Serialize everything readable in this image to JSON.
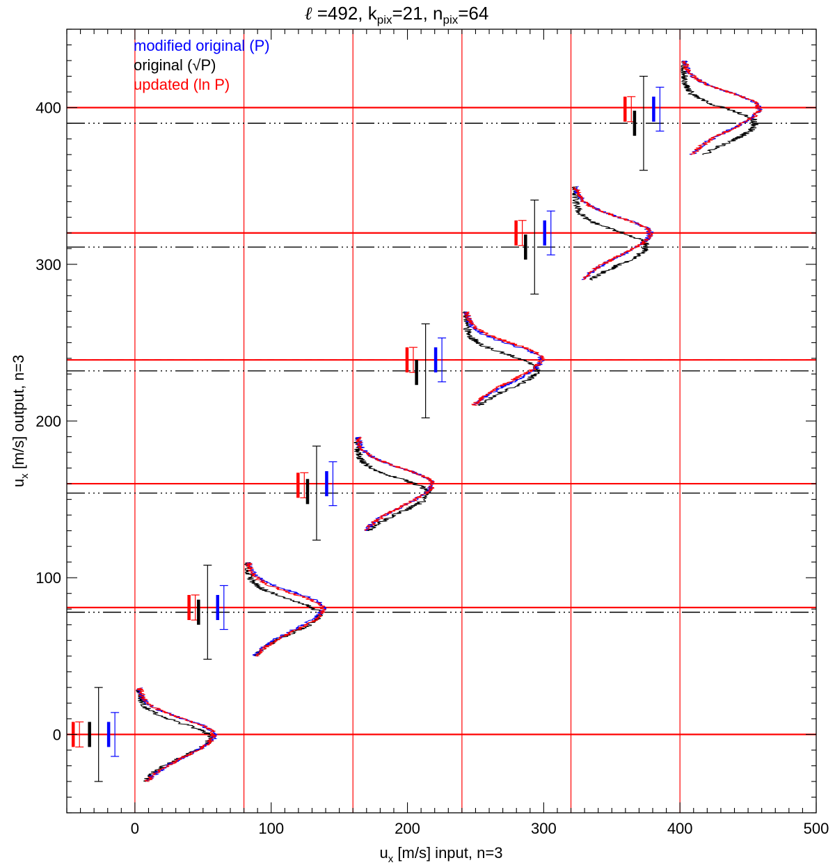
{
  "chart_data": {
    "type": "line",
    "title": {
      "ell_symbol": "ℓ",
      "ell_value": " =492, k",
      "k_sub": "pix",
      "k_value": "=21, n",
      "n_sub": "pix",
      "n_value": "=64"
    },
    "xlabel": {
      "base": "u",
      "sub": "x",
      "rest": " [m/s] input, n=3"
    },
    "ylabel": {
      "base": "u",
      "sub": "x",
      "rest": " [m/s] output, n=3"
    },
    "xlim": [
      -50,
      500
    ],
    "ylim": [
      -50,
      450
    ],
    "x_ticks": [
      "0",
      "100",
      "200",
      "300",
      "400",
      "500"
    ],
    "y_ticks": [
      "0",
      "100",
      "200",
      "300",
      "400"
    ],
    "legend": {
      "placement": "top-left",
      "entries": [
        {
          "label": "modified original (P)",
          "color": "#0000ff"
        },
        {
          "label": "original (√P)",
          "color": "#000000"
        },
        {
          "label": "updated (ln P)",
          "color": "#ff0000"
        }
      ]
    },
    "colors": {
      "modified": "#0000ff",
      "original": "#000000",
      "updated": "#ff0000"
    },
    "input_velocities": [
      0,
      80,
      160,
      240,
      320,
      400
    ],
    "updated_mean_output": [
      0,
      81,
      160,
      239,
      320,
      400
    ],
    "original_mean_output": [
      0,
      78,
      154,
      232,
      311,
      390
    ],
    "modified_mean_output": [
      0,
      81,
      160,
      239,
      320,
      400
    ],
    "errorbars": {
      "updated": {
        "x_offset": [
          -43,
          -38,
          -38,
          -38,
          -38,
          -38
        ],
        "thick_center": [
          0,
          81,
          159,
          239,
          320,
          399
        ],
        "thick_half": [
          8,
          8,
          8,
          8,
          8,
          8
        ],
        "thin_center": [
          0,
          81,
          159,
          239,
          320,
          399
        ],
        "thin_half": [
          8,
          8,
          8,
          8,
          8,
          8
        ]
      },
      "original": {
        "x_offset": [
          -30,
          -30,
          -30,
          -30,
          -30,
          -30
        ],
        "thick_center": [
          0,
          78,
          155,
          231,
          311,
          390
        ],
        "thick_half": [
          8,
          8,
          8,
          8,
          8,
          8
        ],
        "thin_center": [
          0,
          78,
          154,
          232,
          311,
          390
        ],
        "thin_half": [
          30,
          30,
          30,
          30,
          30,
          30
        ]
      },
      "modified": {
        "x_offset": [
          -17,
          -17,
          -17,
          -17,
          -17,
          -17
        ],
        "thick_center": [
          0,
          81,
          160,
          239,
          320,
          399
        ],
        "thick_half": [
          8,
          8,
          8,
          8,
          8,
          8
        ],
        "thin_center": [
          0,
          81,
          160,
          239,
          320,
          399
        ],
        "thin_half": [
          14,
          14,
          14,
          14,
          14,
          14
        ]
      }
    },
    "histograms": {
      "range": [
        -30,
        30
      ],
      "peak_height": 55,
      "updated_peak_offset": [
        0,
        0,
        0,
        0,
        0,
        0
      ],
      "original_peak_offset": [
        -2,
        -3,
        -6,
        -7,
        -8,
        -10
      ],
      "modified_peak_offset": [
        0,
        1,
        0,
        -1,
        0,
        0
      ]
    },
    "grid": false
  }
}
